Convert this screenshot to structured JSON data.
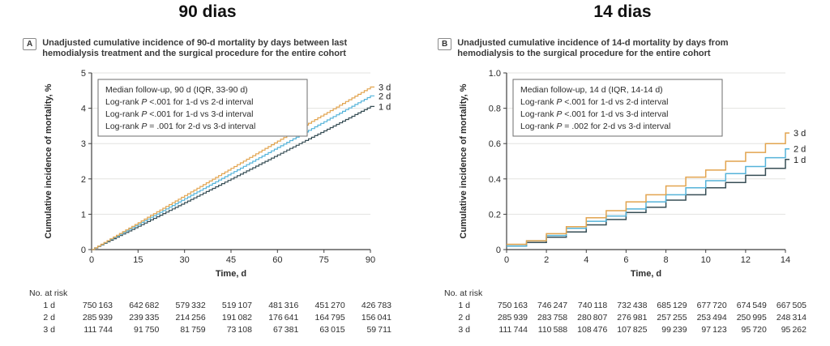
{
  "colors": {
    "series": {
      "1 d": "#374E55",
      "2 d": "#55B3D9",
      "3 d": "#E2A44F"
    },
    "grid": "#E3E3E0",
    "axis": "#3f3f3f",
    "text": "#2b2b2b",
    "legend_border": "#6e6e6e",
    "background": "#ffffff"
  },
  "chart_data": [
    {
      "type": "line",
      "step": true,
      "interpolate_daily": true,
      "line_width": 1.2,
      "title": "90 dias",
      "panel_tag": "A",
      "caption": "Unadjusted cumulative incidence of 90-d mortality by days between last hemodialysis treatment and the surgical procedure for the entire cohort",
      "xlabel": "Time, d",
      "ylabel": "Cumulative incidence of mortality, %",
      "xlim": [
        0,
        90
      ],
      "ylim": [
        0,
        5
      ],
      "xticks": [
        0,
        15,
        30,
        45,
        60,
        75,
        90
      ],
      "yticks": [
        0,
        1,
        2,
        3,
        4,
        5
      ],
      "ytick_labels": [
        "0",
        "1",
        "2",
        "3",
        "4",
        "5"
      ],
      "grid": true,
      "legend_position": "top-left",
      "legend_box": [
        "Median follow-up, 90 d (IQR, 33-90 d)",
        "Log-rank P <.001 for 1-d vs 2-d interval",
        "Log-rank P <.001 for 1-d vs 3-d interval",
        "Log-rank P = .001 for 2-d vs 3-d interval"
      ],
      "x": [
        0,
        15,
        30,
        45,
        60,
        75,
        90
      ],
      "series": [
        {
          "name": "1 d",
          "values": [
            0,
            0.66,
            1.33,
            2.0,
            2.68,
            3.36,
            4.05
          ]
        },
        {
          "name": "2 d",
          "values": [
            0,
            0.72,
            1.44,
            2.16,
            2.89,
            3.62,
            4.35
          ]
        },
        {
          "name": "3 d",
          "values": [
            0,
            0.76,
            1.53,
            2.3,
            3.07,
            3.83,
            4.6
          ]
        }
      ],
      "risk_table": {
        "title": "No. at risk",
        "rows": [
          {
            "label": "1 d",
            "values": [
              750163,
              642682,
              579332,
              519107,
              481316,
              451270,
              426783
            ]
          },
          {
            "label": "2 d",
            "values": [
              285939,
              239335,
              214256,
              191082,
              176641,
              164795,
              156041
            ]
          },
          {
            "label": "3 d",
            "values": [
              111744,
              91750,
              81759,
              73108,
              67381,
              63015,
              59711
            ]
          }
        ]
      }
    },
    {
      "type": "line",
      "step": true,
      "interpolate_daily": false,
      "line_width": 1.5,
      "title": "14 dias",
      "panel_tag": "B",
      "caption": "Unadjusted cumulative incidence of 14-d mortality by days from hemodialysis to the surgical procedure for the entire cohort",
      "xlabel": "Time, d",
      "ylabel": "Cumulative incidence of mortality, %",
      "xlim": [
        0,
        14
      ],
      "ylim": [
        0,
        1.0
      ],
      "xticks": [
        0,
        2,
        4,
        6,
        8,
        10,
        12,
        14
      ],
      "yticks": [
        0,
        0.2,
        0.4,
        0.6,
        0.8,
        1.0
      ],
      "ytick_labels": [
        "0",
        "0.2",
        "0.4",
        "0.6",
        "0.8",
        "1.0"
      ],
      "grid": true,
      "legend_position": "top-left",
      "legend_box": [
        "Median follow-up, 14 d (IQR, 14-14 d)",
        "Log-rank P <.001 for 1-d vs 2-d interval",
        "Log-rank P <.001 for 1-d vs 3-d interval",
        "Log-rank P = .002 for 2-d vs 3-d interval"
      ],
      "x": [
        0,
        1,
        2,
        3,
        4,
        5,
        6,
        7,
        8,
        9,
        10,
        11,
        12,
        13,
        14
      ],
      "series": [
        {
          "name": "1 d",
          "values": [
            0.02,
            0.04,
            0.07,
            0.1,
            0.14,
            0.17,
            0.21,
            0.24,
            0.28,
            0.31,
            0.35,
            0.38,
            0.42,
            0.46,
            0.51
          ]
        },
        {
          "name": "2 d",
          "values": [
            0.02,
            0.05,
            0.08,
            0.12,
            0.16,
            0.19,
            0.23,
            0.27,
            0.31,
            0.35,
            0.39,
            0.43,
            0.47,
            0.52,
            0.57
          ]
        },
        {
          "name": "3 d",
          "values": [
            0.03,
            0.05,
            0.09,
            0.13,
            0.18,
            0.22,
            0.27,
            0.31,
            0.36,
            0.41,
            0.45,
            0.5,
            0.55,
            0.6,
            0.66
          ]
        }
      ],
      "risk_table": {
        "title": "No. at risk",
        "rows": [
          {
            "label": "1 d",
            "values": [
              750163,
              746247,
              740118,
              732438,
              685129,
              677720,
              674549,
              667505
            ]
          },
          {
            "label": "2 d",
            "values": [
              285939,
              283758,
              280807,
              276981,
              257255,
              253494,
              250995,
              248314
            ]
          },
          {
            "label": "3 d",
            "values": [
              111744,
              110588,
              108476,
              107825,
              99239,
              97123,
              95720,
              95262
            ]
          }
        ]
      }
    }
  ]
}
